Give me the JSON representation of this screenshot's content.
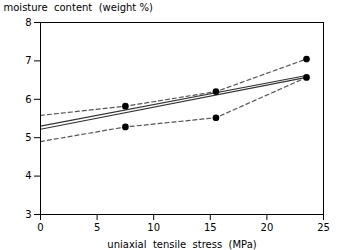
{
  "chart_data": {
    "type": "line",
    "title": "",
    "xlabel": "uniaxial  tensile  stress  (MPa)",
    "ylabel": "moisture  content  (weight %)",
    "xlim": [
      0,
      25
    ],
    "ylim": [
      3,
      8
    ],
    "xticks": [
      0,
      5,
      10,
      15,
      20,
      25
    ],
    "yticks": [
      3,
      4,
      5,
      6,
      7,
      8
    ],
    "grid": false,
    "series": [
      {
        "type": "line",
        "x": [
          0,
          23.5
        ],
        "values": [
          5.22,
          6.57
        ],
        "color": "#333333",
        "line_style": "solid"
      },
      {
        "type": "line",
        "x": [
          0,
          23.5
        ],
        "values": [
          5.3,
          6.62
        ],
        "color": "#333333",
        "line_style": "solid"
      },
      {
        "type": "line",
        "x": [
          0,
          7.5,
          15.5,
          23.5
        ],
        "values": [
          5.58,
          5.82,
          6.2,
          7.05
        ],
        "color": "#555555",
        "line_style": "dashed"
      },
      {
        "type": "scatter",
        "x": [
          7.5,
          15.5,
          23.5
        ],
        "values": [
          5.82,
          6.2,
          7.05
        ],
        "color": "black",
        "marker": "circle"
      },
      {
        "type": "line",
        "x": [
          0,
          7.5,
          15.5,
          23.5
        ],
        "values": [
          4.9,
          5.28,
          5.52,
          6.57
        ],
        "color": "#555555",
        "line_style": "dashed"
      },
      {
        "type": "scatter",
        "x": [
          7.5,
          15.5,
          23.5
        ],
        "values": [
          5.28,
          5.52,
          6.57
        ],
        "color": "black",
        "marker": "circle"
      }
    ]
  }
}
